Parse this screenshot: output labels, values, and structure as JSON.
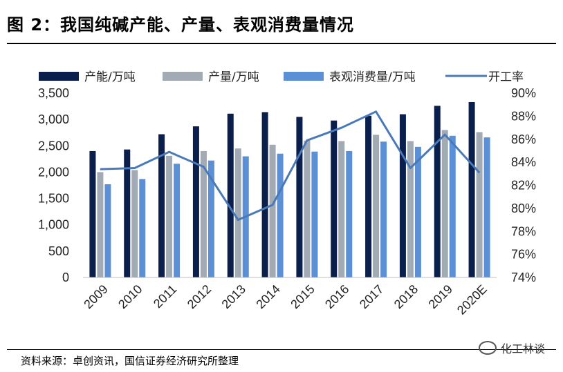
{
  "figure": {
    "title": "图 2：我国纯碱产能、产量、表观消费量情况",
    "source": "资料来源：卓创资讯，国信证券经济研究所整理",
    "watermark": "化工林谈",
    "watermark_icon": "wechat-logo-icon"
  },
  "chart_data": {
    "type": "bar",
    "categories": [
      "2009",
      "2010",
      "2011",
      "2012",
      "2013",
      "2014",
      "2015",
      "2016",
      "2017",
      "2018",
      "2019",
      "2020E"
    ],
    "series": [
      {
        "name": "产能/万吨",
        "type": "bar",
        "axis": "left",
        "color": "#0b1f4d",
        "values": [
          2400,
          2430,
          2720,
          2870,
          3110,
          3140,
          3050,
          2980,
          3070,
          3100,
          3260,
          3330
        ]
      },
      {
        "name": "产量/万吨",
        "type": "bar",
        "axis": "left",
        "color": "#a2aab4",
        "values": [
          2000,
          2040,
          2310,
          2400,
          2450,
          2520,
          2600,
          2590,
          2710,
          2590,
          2800,
          2760
        ]
      },
      {
        "name": "表观消费量/万吨",
        "type": "bar",
        "axis": "left",
        "color": "#5b8fd6",
        "values": [
          1770,
          1870,
          2160,
          2220,
          2300,
          2350,
          2390,
          2400,
          2580,
          2480,
          2690,
          2660
        ]
      },
      {
        "name": "开工率",
        "type": "line",
        "axis": "right",
        "color": "#4a79b8",
        "values": [
          83.4,
          83.5,
          84.9,
          83.6,
          79.0,
          80.3,
          85.9,
          87.0,
          88.4,
          83.5,
          86.4,
          83.1
        ]
      }
    ],
    "y_left": {
      "min": 0,
      "max": 3500,
      "step": 500,
      "ticks": [
        "0",
        "500",
        "1,000",
        "1,500",
        "2,000",
        "2,500",
        "3,000",
        "3,500"
      ]
    },
    "y_right": {
      "min": 74,
      "max": 90,
      "step": 2,
      "ticks": [
        "74%",
        "76%",
        "78%",
        "80%",
        "82%",
        "84%",
        "86%",
        "88%",
        "90%"
      ]
    },
    "grid": false,
    "legend_position": "top"
  }
}
